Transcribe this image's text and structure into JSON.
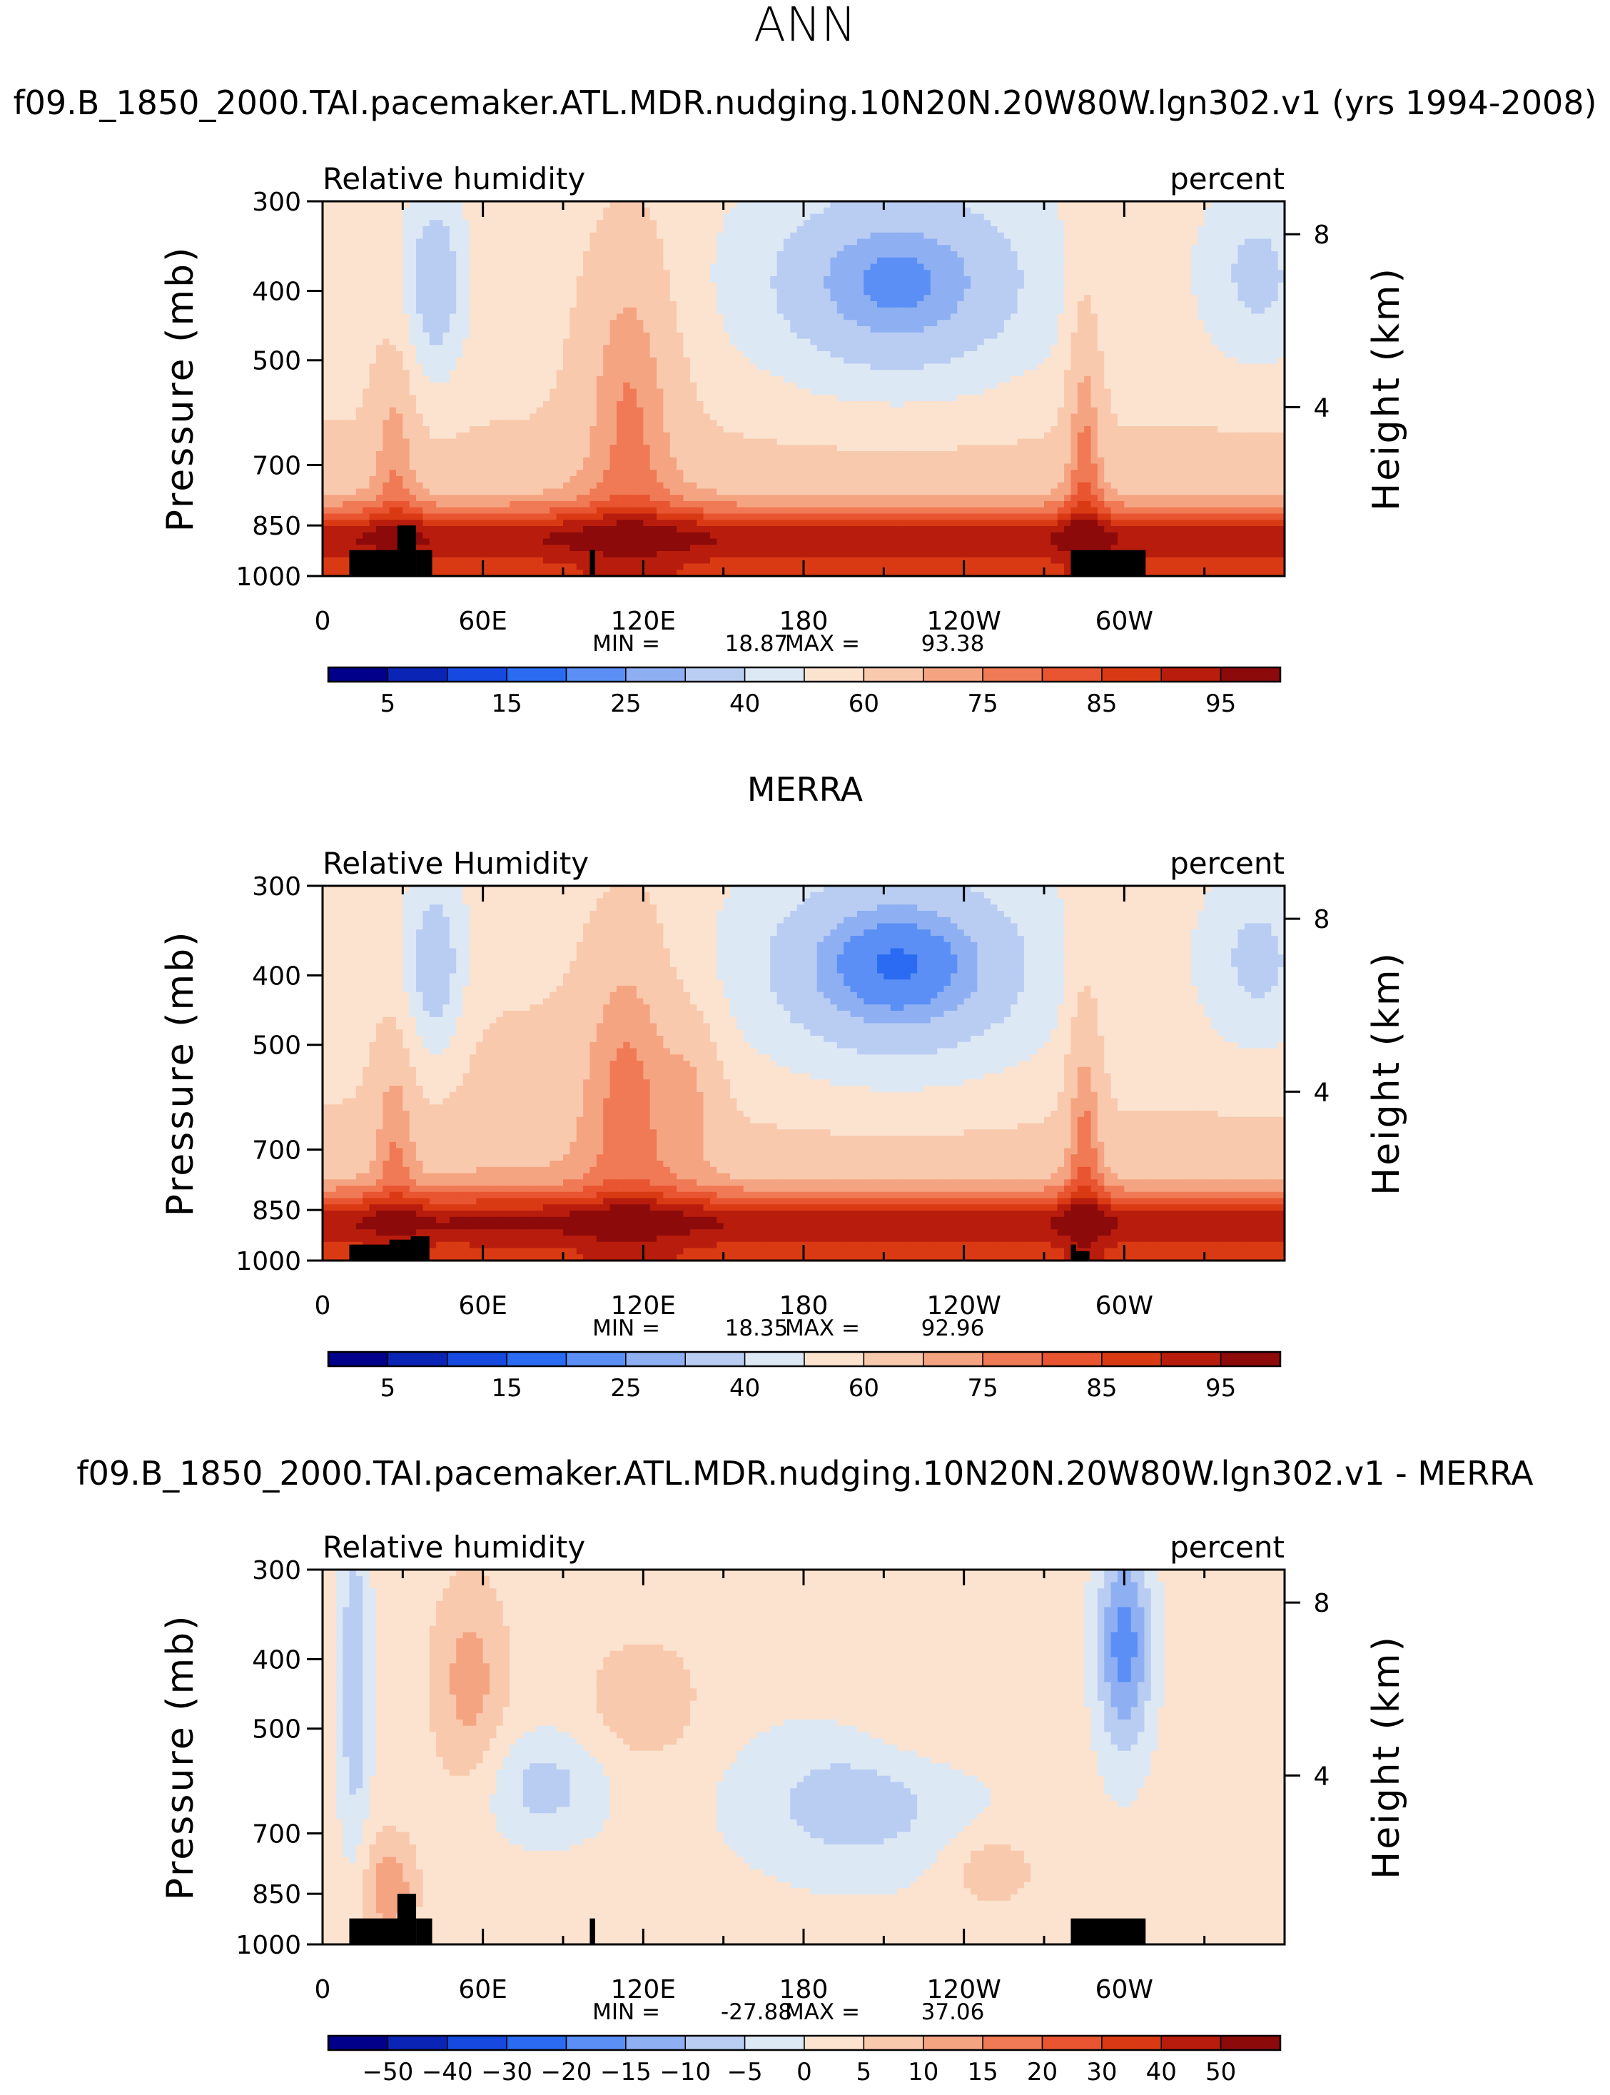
{
  "figure": {
    "season": "ANN",
    "colors": {
      "levels": [
        "#00008b",
        "#0a25b5",
        "#1549e0",
        "#2a6bf2",
        "#5b8ff5",
        "#8eb0f2",
        "#b9ccf2",
        "#dde8f5",
        "#fbe3d0",
        "#f9c9ad",
        "#f5a482",
        "#f07a55",
        "#e85530",
        "#d93a14",
        "#b81c0c",
        "#8c0a0a"
      ],
      "land": "#000000"
    }
  },
  "chart_data": [
    {
      "type": "heatmap",
      "title": "f09.B_1850_2000.TAI.pacemaker.ATL.MDR.nudging.10N20N.20W80W.lgn302.v1 (yrs 1994-2008)",
      "left_label": "Relative humidity",
      "right_label": "percent",
      "ylabel": "Pressure (mb)",
      "y2label": "Height (km)",
      "x_ticks": [
        "0",
        "60E",
        "120E",
        "180",
        "120W",
        "60W"
      ],
      "y_ticks": [
        "300",
        "400",
        "500",
        "700",
        "850",
        "1000"
      ],
      "y2_ticks": [
        "8",
        "4"
      ],
      "min_label": "MIN =",
      "min_value": "18.87",
      "max_label": "MAX =",
      "max_value": "93.38",
      "colorbar_labels": [
        "5",
        "15",
        "25",
        "40",
        "60",
        "75",
        "85",
        "95"
      ],
      "xlim": [
        0,
        360
      ],
      "ylim": [
        1000,
        300
      ]
    },
    {
      "type": "heatmap",
      "title": "MERRA",
      "left_label": "Relative Humidity",
      "right_label": "percent",
      "ylabel": "Pressure (mb)",
      "y2label": "Height (km)",
      "x_ticks": [
        "0",
        "60E",
        "120E",
        "180",
        "120W",
        "60W"
      ],
      "y_ticks": [
        "300",
        "400",
        "500",
        "700",
        "850",
        "1000"
      ],
      "y2_ticks": [
        "8",
        "4"
      ],
      "min_label": "MIN =",
      "min_value": "18.35",
      "max_label": "MAX =",
      "max_value": "92.96",
      "colorbar_labels": [
        "5",
        "15",
        "25",
        "40",
        "60",
        "75",
        "85",
        "95"
      ],
      "xlim": [
        0,
        360
      ],
      "ylim": [
        1000,
        300
      ]
    },
    {
      "type": "heatmap",
      "title": "f09.B_1850_2000.TAI.pacemaker.ATL.MDR.nudging.10N20N.20W80W.lgn302.v1 - MERRA",
      "left_label": "Relative humidity",
      "right_label": "percent",
      "ylabel": "Pressure (mb)",
      "y2label": "Height (km)",
      "x_ticks": [
        "0",
        "60E",
        "120E",
        "180",
        "120W",
        "60W"
      ],
      "y_ticks": [
        "300",
        "400",
        "500",
        "700",
        "850",
        "1000"
      ],
      "y2_ticks": [
        "8",
        "4"
      ],
      "min_label": "MIN =",
      "min_value": "-27.88",
      "max_label": "MAX =",
      "max_value": "37.06",
      "colorbar_labels": [
        "−50",
        "−40",
        "−30",
        "−20",
        "−15",
        "−10",
        "−5",
        "0",
        "5",
        "10",
        "15",
        "20",
        "30",
        "40",
        "50"
      ],
      "xlim": [
        0,
        360
      ],
      "ylim": [
        1000,
        300
      ]
    }
  ]
}
